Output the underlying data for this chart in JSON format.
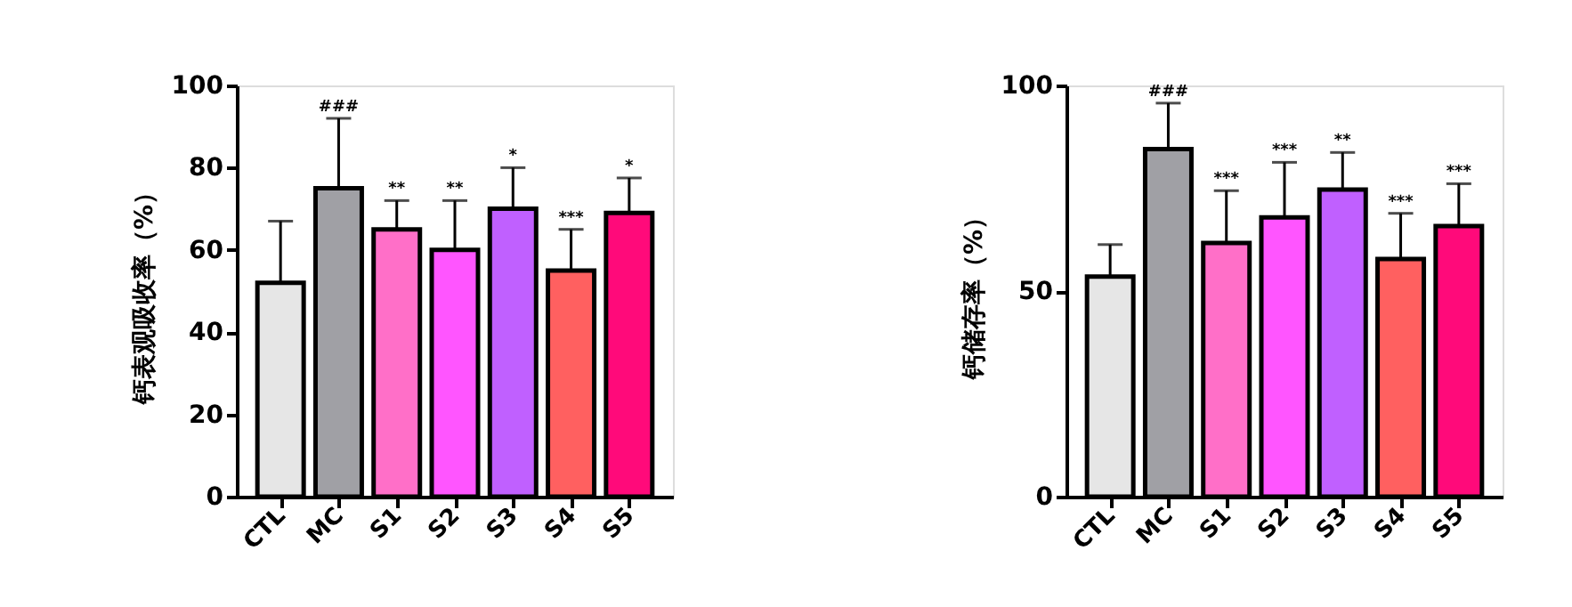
{
  "chart_data": [
    {
      "type": "bar",
      "ylabel": "钙表观吸收率（%）",
      "categories": [
        "CTL",
        "MC",
        "S1",
        "S2",
        "S3",
        "S4",
        "S5"
      ],
      "values": [
        52,
        75,
        65,
        60,
        70,
        55,
        69
      ],
      "errors": [
        15,
        17,
        7,
        12,
        10,
        10,
        8.5
      ],
      "colors": [
        "#e6e6e6",
        "#a0a0a5",
        "#ff6fc8",
        "#ff55ff",
        "#c060ff",
        "#ff6060",
        "#ff0a7a"
      ],
      "ylim": [
        0,
        100
      ],
      "yticks": [
        0,
        20,
        40,
        60,
        80,
        100
      ],
      "grid": false,
      "annotations": [
        {
          "text": "###",
          "x": "MC",
          "y": 92
        },
        {
          "text": "**",
          "x": "S1",
          "y": 72
        },
        {
          "text": "**",
          "x": "S2",
          "y": 72
        },
        {
          "text": "*",
          "x": "S3",
          "y": 80
        },
        {
          "text": "***",
          "x": "S4",
          "y": 65
        },
        {
          "text": "*",
          "x": "S5",
          "y": 77.5
        }
      ]
    },
    {
      "type": "bar",
      "ylabel": "钙储存率（%）",
      "categories": [
        "CTL",
        "MC",
        "S1",
        "S2",
        "S3",
        "S4",
        "S5"
      ],
      "values": [
        53.5,
        84.5,
        61.7,
        67.9,
        74.7,
        57.8,
        65.8
      ],
      "errors": [
        7.8,
        11.2,
        12.7,
        13.4,
        9,
        11.1,
        10.3
      ],
      "colors": [
        "#e6e6e6",
        "#a0a0a5",
        "#ff6fc8",
        "#ff55ff",
        "#c060ff",
        "#ff6060",
        "#ff0a7a"
      ],
      "ylim": [
        0,
        100
      ],
      "yticks": [
        0,
        50,
        100
      ],
      "grid": false,
      "annotations": [
        {
          "text": "###",
          "x": "MC",
          "y": 95.7
        },
        {
          "text": "***",
          "x": "S1",
          "y": 74.4
        },
        {
          "text": "***",
          "x": "S2",
          "y": 81.3
        },
        {
          "text": "**",
          "x": "S3",
          "y": 83.7
        },
        {
          "text": "***",
          "x": "S4",
          "y": 68.9
        },
        {
          "text": "***",
          "x": "S5",
          "y": 76.1
        }
      ]
    }
  ]
}
